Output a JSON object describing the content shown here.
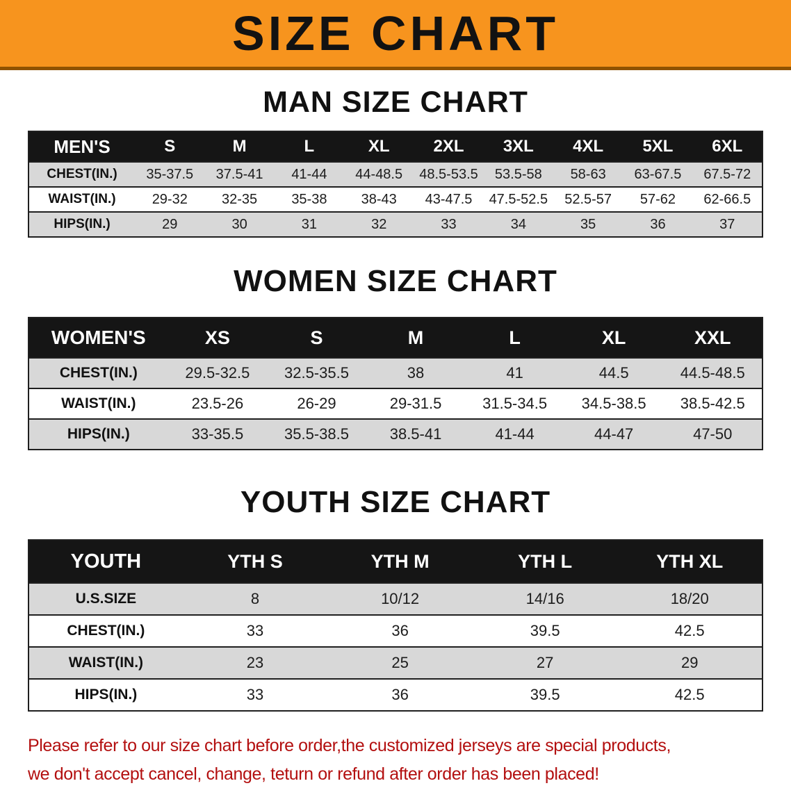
{
  "banner": {
    "title": "SIZE CHART"
  },
  "sections": [
    {
      "id": "men",
      "heading": "MAN SIZE CHART",
      "table": {
        "header": [
          "MEN'S",
          "S",
          "M",
          "L",
          "XL",
          "2XL",
          "3XL",
          "4XL",
          "5XL",
          "6XL"
        ],
        "rows": [
          [
            "CHEST(IN.)",
            "35-37.5",
            "37.5-41",
            "41-44",
            "44-48.5",
            "48.5-53.5",
            "53.5-58",
            "58-63",
            "63-67.5",
            "67.5-72"
          ],
          [
            "WAIST(IN.)",
            "29-32",
            "32-35",
            "35-38",
            "38-43",
            "43-47.5",
            "47.5-52.5",
            "52.5-57",
            "57-62",
            "62-66.5"
          ],
          [
            "HIPS(IN.)",
            "29",
            "30",
            "31",
            "32",
            "33",
            "34",
            "35",
            "36",
            "37"
          ]
        ]
      }
    },
    {
      "id": "women",
      "heading": "WOMEN SIZE CHART",
      "table": {
        "header": [
          "WOMEN'S",
          "XS",
          "S",
          "M",
          "L",
          "XL",
          "XXL"
        ],
        "rows": [
          [
            "CHEST(IN.)",
            "29.5-32.5",
            "32.5-35.5",
            "38",
            "41",
            "44.5",
            "44.5-48.5"
          ],
          [
            "WAIST(IN.)",
            "23.5-26",
            "26-29",
            "29-31.5",
            "31.5-34.5",
            "34.5-38.5",
            "38.5-42.5"
          ],
          [
            "HIPS(IN.)",
            "33-35.5",
            "35.5-38.5",
            "38.5-41",
            "41-44",
            "44-47",
            "47-50"
          ]
        ]
      }
    },
    {
      "id": "youth",
      "heading": "YOUTH SIZE CHART",
      "table": {
        "header": [
          "YOUTH",
          "YTH S",
          "YTH M",
          "YTH L",
          "YTH XL"
        ],
        "rows": [
          [
            "U.S.SIZE",
            "8",
            "10/12",
            "14/16",
            "18/20"
          ],
          [
            "CHEST(IN.)",
            "33",
            "36",
            "39.5",
            "42.5"
          ],
          [
            "WAIST(IN.)",
            "23",
            "25",
            "27",
            "29"
          ],
          [
            "HIPS(IN.)",
            "33",
            "36",
            "39.5",
            "42.5"
          ]
        ]
      }
    }
  ],
  "footer": {
    "line1": "Please refer to our size chart before order,the customized jerseys are special products,",
    "line2": "we don't accept cancel, change, teturn or refund after order has been placed!"
  },
  "colors": {
    "banner_bg": "#F7941E",
    "banner_border": "#8f5200",
    "banner_text": "#121212",
    "table_header_bg": "#151515",
    "table_header_text": "#ffffff",
    "row_stripe": "#d8d8d8",
    "row_plain": "#ffffff",
    "table_border": "#1f1f1f",
    "footer_text": "#b30f0f",
    "text": "#141414"
  }
}
